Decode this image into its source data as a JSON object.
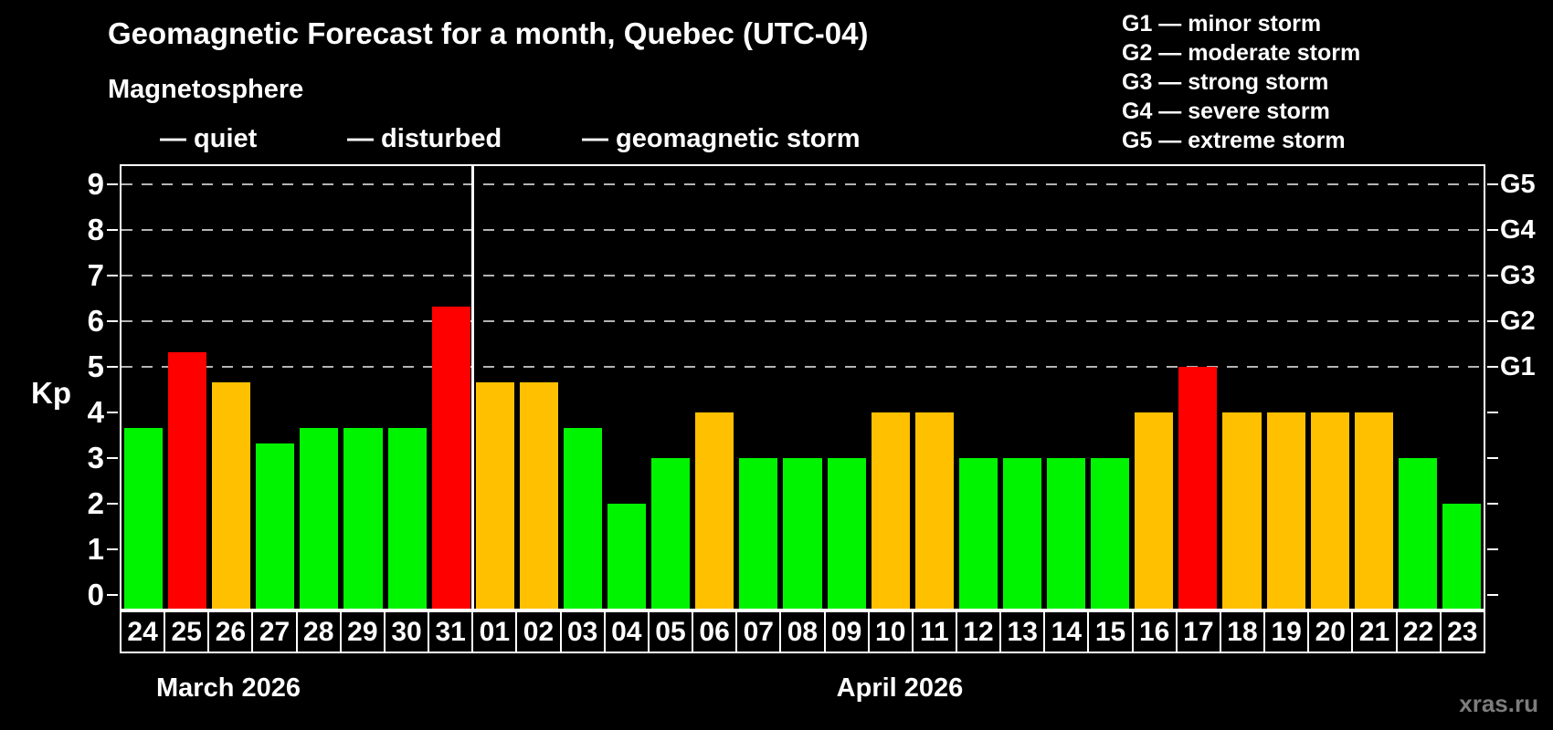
{
  "header": {
    "title": "Geomagnetic Forecast for a month, Quebec (UTC-04)",
    "subtitle": "Magnetosphere"
  },
  "legend": {
    "items": [
      {
        "name": "quiet",
        "label": "— quiet",
        "color": "#00f400"
      },
      {
        "name": "disturbed",
        "label": "— disturbed",
        "color": "#ffc000"
      },
      {
        "name": "storm",
        "label": "— geomagnetic storm",
        "color": "#ff0000"
      }
    ]
  },
  "g_scale_legend": {
    "lines": [
      "G1 — minor storm",
      "G2 — moderate storm",
      "G3 — strong storm",
      "G4 — severe storm",
      "G5 — extreme storm"
    ]
  },
  "watermark": "xras.ru",
  "chart_data": {
    "type": "bar",
    "title": "Geomagnetic Forecast for a month, Quebec (UTC-04)",
    "ylabel": "Kp",
    "ylim": [
      -0.3,
      9.4
    ],
    "y_ticks": [
      0,
      1,
      2,
      3,
      4,
      5,
      6,
      7,
      8,
      9
    ],
    "gridlines_at": [
      5,
      6,
      7,
      8,
      9
    ],
    "grid": true,
    "legend_position": "top",
    "right_axis_labels": [
      {
        "kp": 5,
        "label": "G1"
      },
      {
        "kp": 6,
        "label": "G2"
      },
      {
        "kp": 7,
        "label": "G3"
      },
      {
        "kp": 8,
        "label": "G4"
      },
      {
        "kp": 9,
        "label": "G5"
      }
    ],
    "status_colors": {
      "quiet": "#00f400",
      "disturbed": "#ffc000",
      "storm": "#ff0000"
    },
    "month_separator_after_index": 7,
    "months": [
      {
        "label": "March 2026",
        "days": [
          "24",
          "25",
          "26",
          "27",
          "28",
          "29",
          "30",
          "31"
        ]
      },
      {
        "label": "April 2026",
        "days": [
          "01",
          "02",
          "03",
          "04",
          "05",
          "06",
          "07",
          "08",
          "09",
          "10",
          "11",
          "12",
          "13",
          "14",
          "15",
          "16",
          "17",
          "18",
          "19",
          "20",
          "21",
          "22",
          "23"
        ]
      }
    ],
    "bars": [
      {
        "date": "24",
        "kp": 3.67,
        "status": "quiet"
      },
      {
        "date": "25",
        "kp": 5.33,
        "status": "storm"
      },
      {
        "date": "26",
        "kp": 4.67,
        "status": "disturbed"
      },
      {
        "date": "27",
        "kp": 3.33,
        "status": "quiet"
      },
      {
        "date": "28",
        "kp": 3.67,
        "status": "quiet"
      },
      {
        "date": "29",
        "kp": 3.67,
        "status": "quiet"
      },
      {
        "date": "30",
        "kp": 3.67,
        "status": "quiet"
      },
      {
        "date": "31",
        "kp": 6.33,
        "status": "storm"
      },
      {
        "date": "01",
        "kp": 4.67,
        "status": "disturbed"
      },
      {
        "date": "02",
        "kp": 4.67,
        "status": "disturbed"
      },
      {
        "date": "03",
        "kp": 3.67,
        "status": "quiet"
      },
      {
        "date": "04",
        "kp": 2.0,
        "status": "quiet"
      },
      {
        "date": "05",
        "kp": 3.0,
        "status": "quiet"
      },
      {
        "date": "06",
        "kp": 4.0,
        "status": "disturbed"
      },
      {
        "date": "07",
        "kp": 3.0,
        "status": "quiet"
      },
      {
        "date": "08",
        "kp": 3.0,
        "status": "quiet"
      },
      {
        "date": "09",
        "kp": 3.0,
        "status": "quiet"
      },
      {
        "date": "10",
        "kp": 4.0,
        "status": "disturbed"
      },
      {
        "date": "11",
        "kp": 4.0,
        "status": "disturbed"
      },
      {
        "date": "12",
        "kp": 3.0,
        "status": "quiet"
      },
      {
        "date": "13",
        "kp": 3.0,
        "status": "quiet"
      },
      {
        "date": "14",
        "kp": 3.0,
        "status": "quiet"
      },
      {
        "date": "15",
        "kp": 3.0,
        "status": "quiet"
      },
      {
        "date": "16",
        "kp": 4.0,
        "status": "disturbed"
      },
      {
        "date": "17",
        "kp": 5.0,
        "status": "storm"
      },
      {
        "date": "18",
        "kp": 4.0,
        "status": "disturbed"
      },
      {
        "date": "19",
        "kp": 4.0,
        "status": "disturbed"
      },
      {
        "date": "20",
        "kp": 4.0,
        "status": "disturbed"
      },
      {
        "date": "21",
        "kp": 4.0,
        "status": "disturbed"
      },
      {
        "date": "22",
        "kp": 3.0,
        "status": "quiet"
      },
      {
        "date": "23",
        "kp": 2.0,
        "status": "quiet"
      }
    ]
  }
}
